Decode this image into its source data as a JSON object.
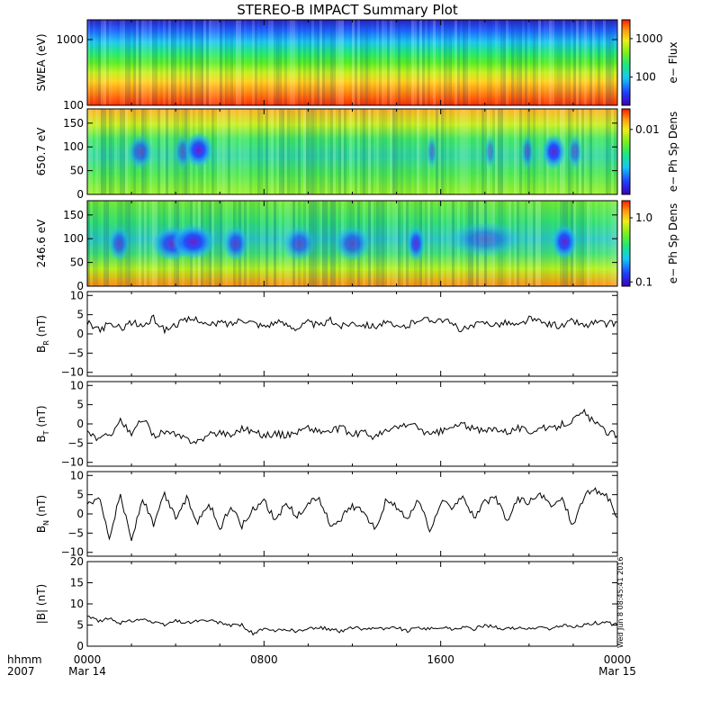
{
  "title": "STEREO-B IMPACT Summary Plot",
  "stamp_line1": "Wed Jun  8 08:45:41 2016",
  "stamp_line2": "",
  "x_axis": {
    "corner_top": "hhmm",
    "corner_bottom": "2007",
    "ticks": [
      {
        "hour": 0,
        "time": "0000",
        "date": "Mar 14"
      },
      {
        "hour": 8,
        "time": "0800",
        "date": ""
      },
      {
        "hour": 16,
        "time": "1600",
        "date": ""
      },
      {
        "hour": 24,
        "time": "0000",
        "date": "Mar 15"
      }
    ],
    "range_hours": [
      0,
      24
    ]
  },
  "chart_data": [
    {
      "id": "swea",
      "type": "heatmap",
      "ylabel": "SWEA (eV)",
      "yscale": "log",
      "ylim": [
        100,
        2000
      ],
      "yticks": [
        {
          "v": 1000,
          "t": "1000"
        },
        {
          "v": 100,
          "t": "100"
        }
      ],
      "colorbar": {
        "label": "e− Flux",
        "scale": "log",
        "ticks": [
          {
            "f": 0.78,
            "t": "1000"
          },
          {
            "f": 0.33,
            "t": "100"
          }
        ]
      },
      "description_profile": "energy bands: red at 100 eV, orange ~200 eV, yellow/green ~400-500 eV, cyan/blue above 1000 eV"
    },
    {
      "id": "pad650",
      "type": "heatmap",
      "ylabel": "650.7 eV",
      "ylim": [
        0,
        180
      ],
      "yticks": [
        {
          "v": 150,
          "t": "150"
        },
        {
          "v": 100,
          "t": "100"
        },
        {
          "v": 50,
          "t": "50"
        },
        {
          "v": 0,
          "t": "0"
        }
      ],
      "colorbar": {
        "label": "e− Ph Sp Dens",
        "scale": "log",
        "ticks": [
          {
            "f": 0.76,
            "t": "0.01"
          }
        ]
      }
    },
    {
      "id": "pad246",
      "type": "heatmap",
      "ylabel": "246.6 eV",
      "ylim": [
        0,
        180
      ],
      "yticks": [
        {
          "v": 150,
          "t": "150"
        },
        {
          "v": 100,
          "t": "100"
        },
        {
          "v": 50,
          "t": "50"
        },
        {
          "v": 0,
          "t": "0"
        }
      ],
      "colorbar": {
        "label": "e− Ph Sp Dens",
        "scale": "log",
        "ticks": [
          {
            "f": 0.8,
            "t": "1.0"
          },
          {
            "f": 0.05,
            "t": "0.1"
          }
        ]
      }
    },
    {
      "id": "br",
      "type": "line",
      "ylabel_main": "B",
      "ylabel_sub": "R",
      "ylabel_unit": " (nT)",
      "ylim": [
        -11,
        11
      ],
      "yticks": [
        {
          "v": 10,
          "t": "10"
        },
        {
          "v": 5,
          "t": "5"
        },
        {
          "v": 0,
          "t": "0"
        },
        {
          "v": -5,
          "t": "−5"
        },
        {
          "v": -10,
          "t": "−10"
        }
      ],
      "x": [
        0,
        0.5,
        1,
        1.5,
        2,
        2.5,
        3,
        3.5,
        4,
        4.5,
        5,
        5.5,
        6,
        6.5,
        7,
        7.5,
        8,
        8.5,
        9,
        9.5,
        10,
        10.5,
        11,
        11.5,
        12,
        12.5,
        13,
        13.5,
        14,
        14.5,
        15,
        15.5,
        16,
        16.5,
        17,
        17.5,
        18,
        18.5,
        19,
        19.5,
        20,
        20.5,
        21,
        21.5,
        22,
        22.5,
        23,
        23.5,
        24
      ],
      "values": [
        3,
        1,
        2.5,
        1.5,
        3,
        2,
        4,
        1,
        2.5,
        3.5,
        4,
        2,
        3,
        2.5,
        4,
        3,
        2,
        3,
        2.5,
        1.5,
        3,
        2,
        3.5,
        2,
        3,
        2.5,
        2,
        3,
        1.5,
        2,
        4,
        3.5,
        4,
        2.5,
        1,
        2,
        3,
        2.5,
        3,
        2,
        4,
        3,
        2.5,
        2,
        3.5,
        2,
        3,
        2.5,
        3
      ]
    },
    {
      "id": "bt",
      "type": "line",
      "ylabel_main": "B",
      "ylabel_sub": "T",
      "ylabel_unit": " (nT)",
      "ylim": [
        -11,
        11
      ],
      "yticks": [
        {
          "v": 10,
          "t": "10"
        },
        {
          "v": 5,
          "t": "5"
        },
        {
          "v": 0,
          "t": "0"
        },
        {
          "v": -5,
          "t": "−5"
        },
        {
          "v": -10,
          "t": "−10"
        }
      ],
      "x": [
        0,
        0.5,
        1,
        1.5,
        2,
        2.5,
        3,
        3.5,
        4,
        4.5,
        5,
        5.5,
        6,
        6.5,
        7,
        7.5,
        8,
        8.5,
        9,
        9.5,
        10,
        10.5,
        11,
        11.5,
        12,
        12.5,
        13,
        13.5,
        14,
        14.5,
        15,
        15.5,
        16,
        16.5,
        17,
        17.5,
        18,
        18.5,
        19,
        19.5,
        20,
        20.5,
        21,
        21.5,
        22,
        22.5,
        23,
        23.5,
        24
      ],
      "values": [
        -2,
        -4,
        -3,
        1,
        -3,
        1.5,
        -3,
        -2,
        -3,
        -4,
        -4.5,
        -3,
        -2,
        -3,
        -1,
        -2,
        -3,
        -2.5,
        -3,
        -2,
        -1,
        -2,
        -2,
        -1,
        -3,
        -2,
        -3.5,
        -2,
        -1,
        0,
        -1,
        -3,
        -2,
        -1,
        0,
        -1.5,
        -2,
        -1,
        -2,
        -1,
        -2,
        -1,
        -1.5,
        0,
        1,
        3,
        0,
        -2,
        -3
      ]
    },
    {
      "id": "bn",
      "type": "line",
      "ylabel_main": "B",
      "ylabel_sub": "N",
      "ylabel_unit": " (nT)",
      "ylim": [
        -11,
        11
      ],
      "yticks": [
        {
          "v": 10,
          "t": "10"
        },
        {
          "v": 5,
          "t": "5"
        },
        {
          "v": 0,
          "t": "0"
        },
        {
          "v": -5,
          "t": "−5"
        },
        {
          "v": -10,
          "t": "−10"
        }
      ],
      "x": [
        0,
        0.5,
        1,
        1.5,
        2,
        2.5,
        3,
        3.5,
        4,
        4.5,
        5,
        5.5,
        6,
        6.5,
        7,
        7.5,
        8,
        8.5,
        9,
        9.5,
        10,
        10.5,
        11,
        11.5,
        12,
        12.5,
        13,
        13.5,
        14,
        14.5,
        15,
        15.5,
        16,
        16.5,
        17,
        17.5,
        18,
        18.5,
        19,
        19.5,
        20,
        20.5,
        21,
        21.5,
        22,
        22.5,
        23,
        23.5,
        24
      ],
      "values": [
        2,
        5,
        -6,
        5,
        -7,
        4,
        -3,
        5,
        -1,
        4,
        -2,
        3,
        -4,
        2,
        -3,
        1,
        4,
        -2,
        3,
        -1,
        3,
        4,
        -3,
        -1,
        2,
        1,
        -4,
        3,
        2,
        -2,
        4,
        -5,
        3,
        2,
        5,
        -1,
        3,
        4,
        -2,
        4,
        3,
        5,
        2,
        4,
        -3,
        5,
        6,
        5,
        -1
      ]
    },
    {
      "id": "bmag",
      "type": "line",
      "ylabel_main": "|B| (nT)",
      "ylabel_sub": "",
      "ylabel_unit": "",
      "ylim": [
        0,
        20
      ],
      "yticks": [
        {
          "v": 20,
          "t": "20"
        },
        {
          "v": 15,
          "t": "15"
        },
        {
          "v": 10,
          "t": "10"
        },
        {
          "v": 5,
          "t": "5"
        },
        {
          "v": 0,
          "t": "0"
        }
      ],
      "x": [
        0,
        0.5,
        1,
        1.5,
        2,
        2.5,
        3,
        3.5,
        4,
        4.5,
        5,
        5.5,
        6,
        6.5,
        7,
        7.5,
        8,
        8.5,
        9,
        9.5,
        10,
        10.5,
        11,
        11.5,
        12,
        12.5,
        13,
        13.5,
        14,
        14.5,
        15,
        15.5,
        16,
        16.5,
        17,
        17.5,
        18,
        18.5,
        19,
        19.5,
        20,
        20.5,
        21,
        21.5,
        22,
        22.5,
        23,
        23.5,
        24
      ],
      "values": [
        7,
        6,
        6.5,
        5.5,
        6,
        6.5,
        5.5,
        5,
        6,
        5.5,
        6,
        6,
        5.5,
        5,
        5,
        3,
        4,
        3.5,
        4,
        3.5,
        4,
        4.5,
        4,
        3.5,
        4.5,
        4,
        4.5,
        4,
        4.5,
        3.5,
        4.5,
        4,
        4.5,
        4,
        4.5,
        4,
        5,
        4.5,
        4,
        4.5,
        4,
        4.5,
        4,
        5,
        4.5,
        5,
        5.5,
        5.5,
        5
      ]
    }
  ]
}
